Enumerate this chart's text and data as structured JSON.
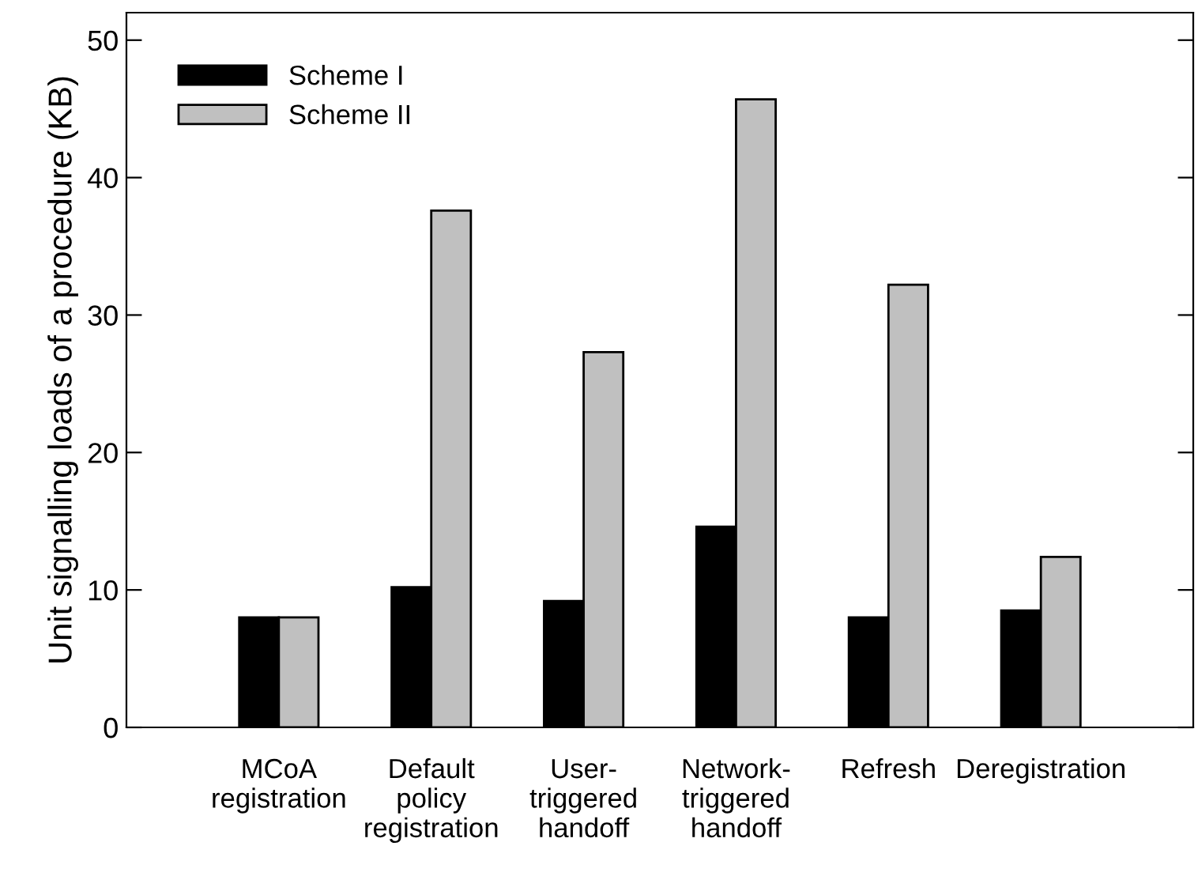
{
  "chart_data": {
    "type": "bar",
    "ylabel": "Unit signalling loads of a procedure (KB)",
    "categories": [
      "MCoA\nregistration",
      "Default\npolicy\nregistration",
      "User-\ntriggered\nhandoff",
      "Network-\ntriggered\nhandoff",
      "Refresh",
      "Deregistration"
    ],
    "series": [
      {
        "name": "Scheme I",
        "color": "#000000",
        "values": [
          8.0,
          10.2,
          9.2,
          14.6,
          8.0,
          8.5
        ]
      },
      {
        "name": "Scheme II",
        "color": "#c0c0c0",
        "values": [
          8.0,
          37.6,
          27.3,
          45.7,
          32.2,
          12.4
        ]
      }
    ],
    "ylim": [
      0,
      52
    ],
    "yticks": [
      0,
      10,
      20,
      30,
      40,
      50
    ],
    "grid": false,
    "legend": "top left"
  }
}
